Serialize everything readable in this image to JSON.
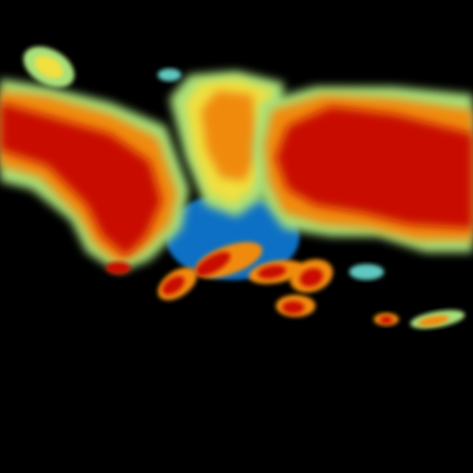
{
  "radar": {
    "background": "#000000",
    "palette": {
      "blue": "#0a6fc4",
      "cyan": "#5fc8c0",
      "green": "#a8e07a",
      "yellow": "#f0e040",
      "orange": "#f08a10",
      "red": "#c81000"
    }
  }
}
